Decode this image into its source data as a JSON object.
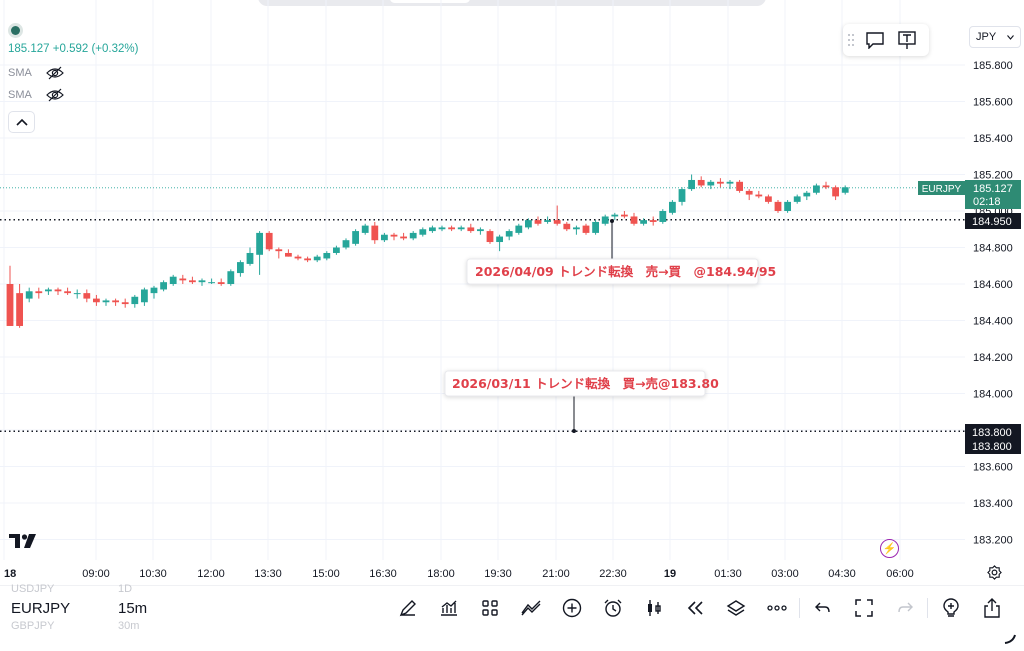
{
  "legend": {
    "price_line": "185.127 +0.592 (+0.32%)",
    "sma1": "SMA",
    "sma2": "SMA"
  },
  "currency_selector": "JPY",
  "price_axis": {
    "ticks": [
      "185.800",
      "185.600",
      "185.400",
      "185.200",
      "185.000",
      "184.800",
      "184.600",
      "184.400",
      "184.200",
      "184.000",
      "183.800",
      "183.600",
      "183.400",
      "183.200"
    ]
  },
  "time_axis": {
    "labels": [
      "18",
      "09:00",
      "10:30",
      "12:00",
      "13:30",
      "15:00",
      "16:30",
      "18:00",
      "19:30",
      "21:00",
      "22:30",
      "19",
      "01:30",
      "03:00",
      "04:30",
      "06:00"
    ]
  },
  "price_tags": {
    "symbol": "EURJPY",
    "last": "185.127",
    "countdown": "02:18",
    "line1": "184.950",
    "line2a": "183.800",
    "line2b": "183.800"
  },
  "notes": {
    "note1": "2026/04/09 トレンド転換　売→買　@184.94/95",
    "note2": "2026/03/11 トレンド転換　買→売@183.80"
  },
  "colors": {
    "up": "#26a69a",
    "down": "#ef5350",
    "note_text": "#e0404a"
  },
  "bottom": {
    "ghost_symbol_above": "USDJPY",
    "ghost_interval_above": "1D",
    "symbol": "EURJPY",
    "interval": "15m",
    "ghost_symbol_below": "GBPJPY",
    "ghost_interval_below": "30m"
  },
  "toolbar_icons": [
    "pen-icon",
    "chart-indicator-icon",
    "grid-icon",
    "compare-icon",
    "plus-circle-icon",
    "alarm-icon",
    "candles-icon",
    "replay-icon",
    "layers-icon",
    "more-icon",
    "undo-icon",
    "fullscreen-icon",
    "redo-icon",
    "bulb-icon",
    "share-icon"
  ],
  "chart_data": {
    "type": "candlestick",
    "symbol": "EURJPY",
    "interval": "15m",
    "ylim": [
      183.1,
      185.95
    ],
    "candles": [
      [
        184.6,
        184.7,
        184.37,
        184.37
      ],
      [
        184.55,
        184.6,
        184.36,
        184.37
      ],
      [
        184.52,
        184.58,
        184.5,
        184.56
      ],
      [
        184.56,
        184.58,
        184.52,
        184.55
      ],
      [
        184.56,
        184.58,
        184.54,
        184.57
      ],
      [
        184.57,
        184.58,
        184.54,
        184.56
      ],
      [
        184.56,
        184.58,
        184.54,
        184.55
      ],
      [
        184.55,
        184.57,
        184.52,
        184.55
      ],
      [
        184.55,
        184.57,
        184.5,
        184.52
      ],
      [
        184.52,
        184.54,
        184.48,
        184.5
      ],
      [
        184.5,
        184.52,
        184.48,
        184.51
      ],
      [
        184.51,
        184.52,
        184.48,
        184.5
      ],
      [
        184.5,
        184.52,
        184.47,
        184.49
      ],
      [
        184.49,
        184.54,
        184.47,
        184.53
      ],
      [
        184.5,
        184.58,
        184.48,
        184.57
      ],
      [
        184.55,
        184.59,
        184.52,
        184.58
      ],
      [
        184.57,
        184.62,
        184.56,
        184.61
      ],
      [
        184.6,
        184.65,
        184.59,
        184.64
      ],
      [
        184.63,
        184.65,
        184.6,
        184.62
      ],
      [
        184.62,
        184.64,
        184.6,
        184.61
      ],
      [
        184.61,
        184.63,
        184.59,
        184.62
      ],
      [
        184.61,
        184.63,
        184.6,
        184.61
      ],
      [
        184.61,
        184.63,
        184.59,
        184.6
      ],
      [
        184.6,
        184.68,
        184.59,
        184.67
      ],
      [
        184.66,
        184.73,
        184.64,
        184.72
      ],
      [
        184.71,
        184.8,
        184.7,
        184.77
      ],
      [
        184.76,
        184.89,
        184.65,
        184.88
      ],
      [
        184.88,
        184.89,
        184.78,
        184.79
      ],
      [
        184.79,
        184.8,
        184.74,
        184.78
      ],
      [
        184.77,
        184.79,
        184.75,
        184.75
      ],
      [
        184.75,
        184.76,
        184.73,
        184.74
      ],
      [
        184.74,
        184.75,
        184.72,
        184.73
      ],
      [
        184.73,
        184.76,
        184.72,
        184.75
      ],
      [
        184.74,
        184.78,
        184.73,
        184.77
      ],
      [
        184.77,
        184.81,
        184.76,
        184.8
      ],
      [
        184.8,
        184.85,
        184.79,
        184.84
      ],
      [
        184.82,
        184.9,
        184.81,
        184.89
      ],
      [
        184.88,
        184.93,
        184.87,
        184.92
      ],
      [
        184.92,
        184.94,
        184.82,
        184.84
      ],
      [
        184.84,
        184.88,
        184.83,
        184.87
      ],
      [
        184.87,
        184.88,
        184.84,
        184.86
      ],
      [
        184.86,
        184.88,
        184.84,
        184.85
      ],
      [
        184.85,
        184.89,
        184.84,
        184.88
      ],
      [
        184.87,
        184.91,
        184.86,
        184.9
      ],
      [
        184.89,
        184.92,
        184.88,
        184.91
      ],
      [
        184.9,
        184.92,
        184.89,
        184.91
      ],
      [
        184.91,
        184.92,
        184.89,
        184.9
      ],
      [
        184.9,
        184.92,
        184.89,
        184.91
      ],
      [
        184.91,
        184.93,
        184.88,
        184.89
      ],
      [
        184.89,
        184.91,
        184.87,
        184.9
      ],
      [
        184.89,
        184.9,
        184.82,
        184.83
      ],
      [
        184.83,
        184.87,
        184.78,
        184.86
      ],
      [
        184.86,
        184.9,
        184.84,
        184.89
      ],
      [
        184.88,
        184.93,
        184.87,
        184.92
      ],
      [
        184.91,
        184.96,
        184.9,
        184.95
      ],
      [
        184.95,
        184.97,
        184.92,
        184.93
      ],
      [
        184.94,
        184.97,
        184.93,
        184.95
      ],
      [
        184.95,
        185.03,
        184.92,
        184.93
      ],
      [
        184.93,
        184.94,
        184.89,
        184.9
      ],
      [
        184.9,
        184.92,
        184.87,
        184.91
      ],
      [
        184.92,
        184.93,
        184.87,
        184.88
      ],
      [
        184.88,
        184.95,
        184.87,
        184.94
      ],
      [
        184.93,
        184.98,
        184.92,
        184.97
      ],
      [
        184.97,
        184.99,
        184.95,
        184.98
      ],
      [
        184.98,
        185.0,
        184.96,
        184.97
      ],
      [
        184.97,
        184.99,
        184.92,
        184.93
      ],
      [
        184.93,
        184.96,
        184.92,
        184.95
      ],
      [
        184.95,
        184.97,
        184.92,
        184.94
      ],
      [
        184.94,
        185.01,
        184.93,
        185.0
      ],
      [
        184.99,
        185.06,
        184.98,
        185.05
      ],
      [
        185.05,
        185.13,
        185.03,
        185.12
      ],
      [
        185.12,
        185.2,
        185.11,
        185.17
      ],
      [
        185.17,
        185.19,
        185.13,
        185.14
      ],
      [
        185.14,
        185.17,
        185.12,
        185.16
      ],
      [
        185.16,
        185.18,
        185.13,
        185.15
      ],
      [
        185.15,
        185.17,
        185.12,
        185.16
      ],
      [
        185.16,
        185.17,
        185.1,
        185.11
      ],
      [
        185.11,
        185.12,
        185.06,
        185.09
      ],
      [
        185.09,
        185.11,
        185.07,
        185.08
      ],
      [
        185.08,
        185.09,
        185.04,
        185.05
      ],
      [
        185.05,
        185.06,
        184.99,
        185.0
      ],
      [
        185.0,
        185.06,
        184.99,
        185.05
      ],
      [
        185.05,
        185.09,
        185.04,
        185.08
      ],
      [
        185.08,
        185.11,
        185.06,
        185.1
      ],
      [
        185.1,
        185.15,
        185.09,
        185.14
      ],
      [
        185.14,
        185.16,
        185.12,
        185.13
      ],
      [
        185.13,
        185.14,
        185.06,
        185.08
      ],
      [
        185.1,
        185.14,
        185.09,
        185.13
      ]
    ]
  }
}
